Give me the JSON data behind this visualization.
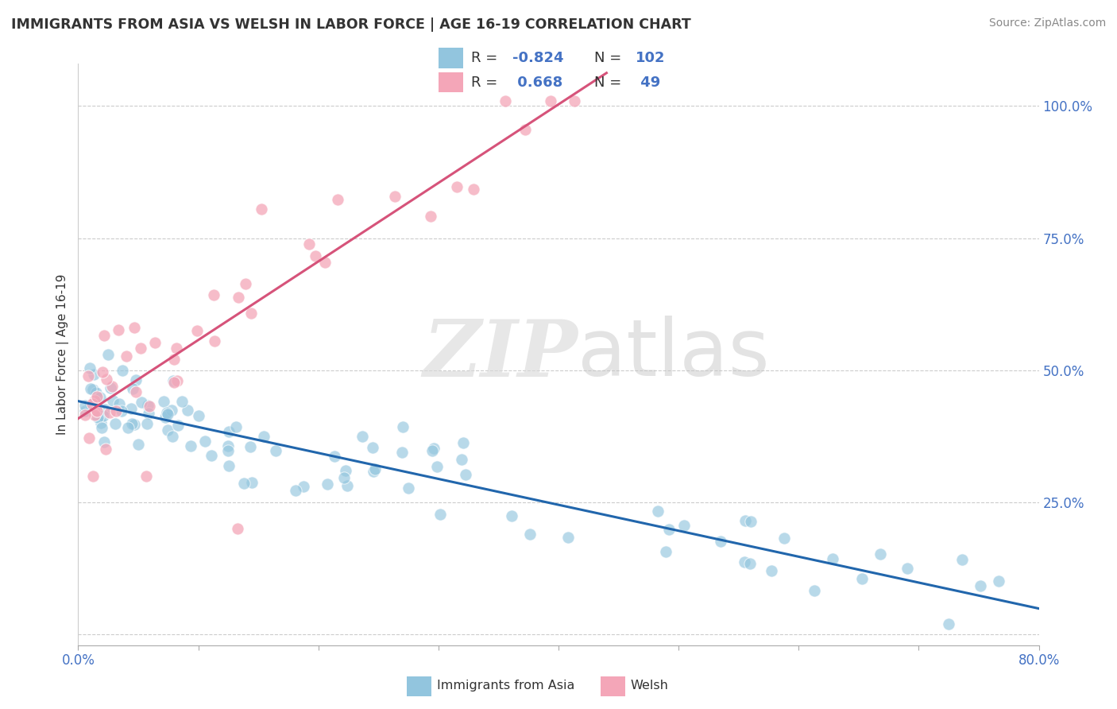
{
  "title": "IMMIGRANTS FROM ASIA VS WELSH IN LABOR FORCE | AGE 16-19 CORRELATION CHART",
  "source": "Source: ZipAtlas.com",
  "ylabel": "In Labor Force | Age 16-19",
  "xlim": [
    0.0,
    0.8
  ],
  "ylim": [
    -0.02,
    1.08
  ],
  "blue_R": -0.824,
  "blue_N": 102,
  "pink_R": 0.668,
  "pink_N": 49,
  "blue_color": "#92c5de",
  "pink_color": "#f4a6b8",
  "blue_line_color": "#2166ac",
  "pink_line_color": "#d6537a",
  "watermark_zip": "ZIP",
  "watermark_atlas": "atlas",
  "background_color": "#ffffff",
  "grid_color": "#cccccc",
  "right_tick_color": "#4472c4",
  "title_color": "#333333",
  "source_color": "#888888",
  "ylabel_color": "#333333"
}
